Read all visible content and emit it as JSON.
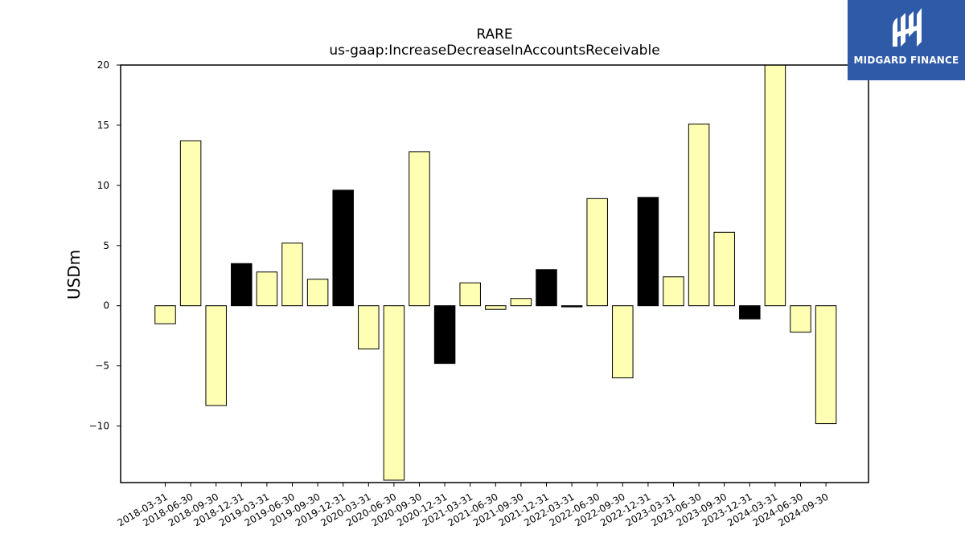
{
  "brand": {
    "name": "MIDGARD FINANCE",
    "logo_icon": "midgard-mark-icon",
    "background": "#2f5aa8",
    "foreground": "#ffffff"
  },
  "colors": {
    "positive_fill": "#ffffb3",
    "highlight_fill": "#000000",
    "bar_edge": "#000000"
  },
  "chart_data": {
    "type": "bar",
    "title": "RARE",
    "subtitle": "us-gaap:IncreaseDecreaseInAccountsReceivable",
    "xlabel": "",
    "ylabel": "USDm",
    "ylim": [
      -14.7,
      20
    ],
    "yticks": [
      -10,
      -5,
      0,
      5,
      10,
      15,
      20
    ],
    "ytick_labels": [
      "−10",
      "−5",
      "0",
      "5",
      "10",
      "15",
      "20"
    ],
    "grid": false,
    "categories": [
      "2018-03-31",
      "2018-06-30",
      "2018-09-30",
      "2018-12-31",
      "2019-03-31",
      "2019-06-30",
      "2019-09-30",
      "2019-12-31",
      "2020-03-31",
      "2020-06-30",
      "2020-09-30",
      "2020-12-31",
      "2021-03-31",
      "2021-06-30",
      "2021-09-30",
      "2021-12-31",
      "2022-03-31",
      "2022-06-30",
      "2022-09-30",
      "2022-12-31",
      "2023-03-31",
      "2023-06-30",
      "2023-09-30",
      "2023-12-31",
      "2024-03-31",
      "2024-06-30",
      "2024-09-30"
    ],
    "values": [
      -1.5,
      13.7,
      -8.3,
      3.5,
      2.8,
      5.2,
      2.2,
      9.6,
      -3.6,
      -14.5,
      12.8,
      -4.8,
      1.9,
      -0.3,
      0.6,
      3.0,
      -0.1,
      8.9,
      -6.0,
      9.0,
      2.4,
      15.1,
      6.1,
      -1.1,
      20.0,
      -2.2,
      -9.8
    ],
    "highlight": [
      false,
      false,
      false,
      true,
      false,
      false,
      false,
      true,
      false,
      false,
      false,
      true,
      false,
      false,
      false,
      true,
      true,
      false,
      false,
      true,
      false,
      false,
      false,
      true,
      false,
      false,
      false
    ]
  }
}
